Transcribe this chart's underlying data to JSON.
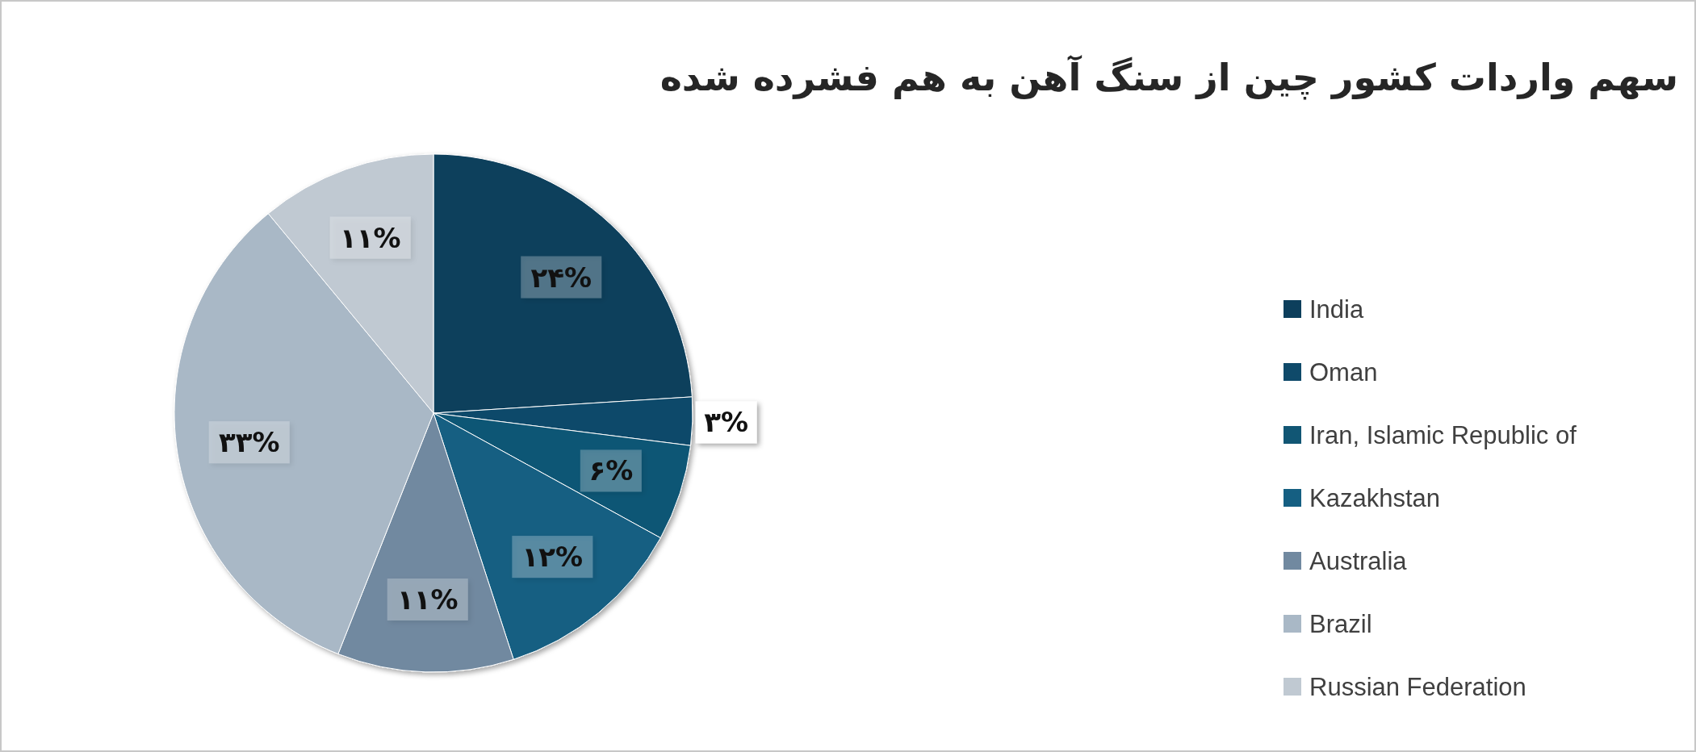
{
  "chart_data": {
    "type": "pie",
    "title": "سهم واردات کشور چین از سنگ آهن به هم فشرده شده",
    "categories": [
      "India",
      "Oman",
      "Iran, Islamic Republic of",
      "Kazakhstan",
      "Australia",
      "Brazil",
      "Russian Federation"
    ],
    "values": [
      24,
      3,
      6,
      12,
      11,
      33,
      11
    ],
    "value_labels": [
      "۲۴%",
      "۳%",
      "۶%",
      "۱۲%",
      "۱۱%",
      "۳۳%",
      "۱۱%"
    ],
    "colors": [
      "#0d3f5c",
      "#0f4a6a",
      "#115674",
      "#155f82",
      "#7189a0",
      "#a9b8c6",
      "#c0c9d2"
    ],
    "legend": "right"
  }
}
